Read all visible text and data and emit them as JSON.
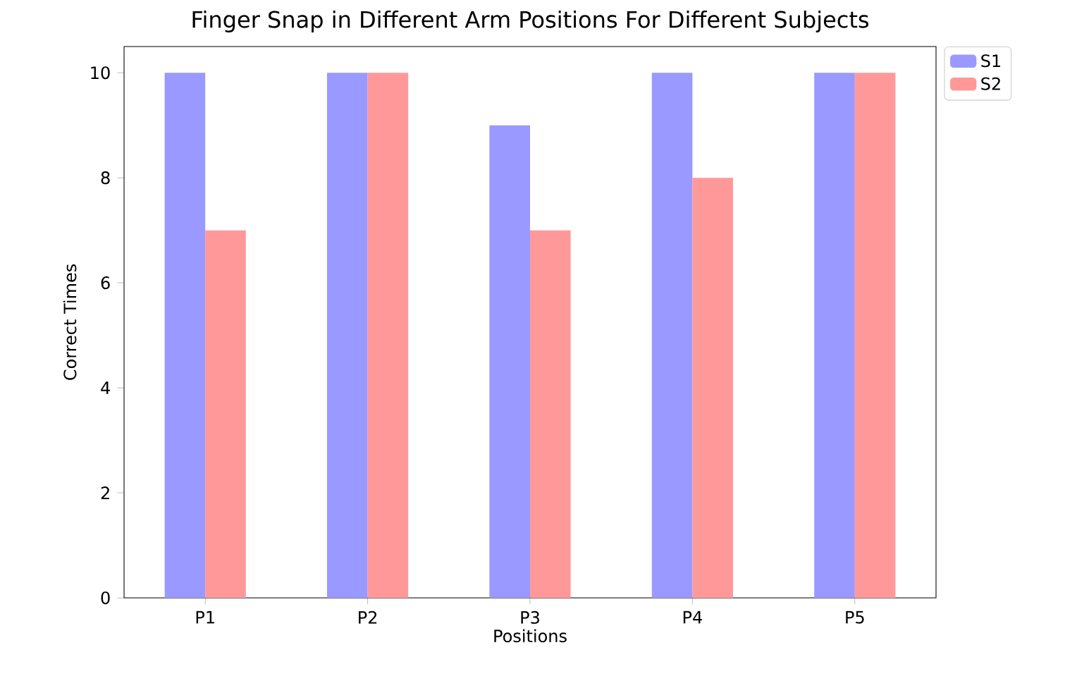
{
  "chart_data": {
    "type": "bar",
    "title": "Finger Snap in Different Arm Positions For Different Subjects",
    "xlabel": "Positions",
    "ylabel": "Correct Times",
    "categories": [
      "P1",
      "P2",
      "P3",
      "P4",
      "P5"
    ],
    "series": [
      {
        "name": "S1",
        "color": "#9999ff",
        "values": [
          10,
          10,
          9,
          10,
          10
        ]
      },
      {
        "name": "S2",
        "color": "#ff9999",
        "values": [
          7,
          10,
          7,
          8,
          10
        ]
      }
    ],
    "ylim": [
      0,
      10.5
    ],
    "yticks": [
      0,
      2,
      4,
      6,
      8,
      10
    ],
    "grid": false,
    "legend": "top right"
  }
}
